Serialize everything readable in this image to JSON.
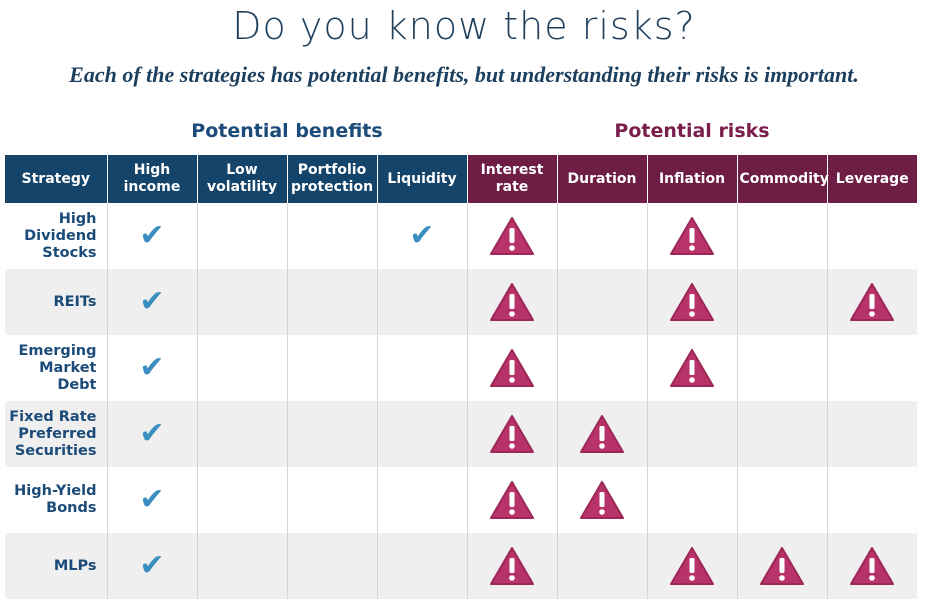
{
  "title": "Do you know the risks?",
  "subtitle": "Each of the strategies has potential benefits, but understanding their risks is important.",
  "groups": {
    "benefits": "Potential benefits",
    "risks": "Potential risks"
  },
  "columns": {
    "strategy": "Strategy",
    "high_income": [
      "High",
      "income"
    ],
    "low_volatility": [
      "Low",
      "volatility"
    ],
    "portfolio_protection": [
      "Portfolio",
      "protection"
    ],
    "liquidity": "Liquidity",
    "interest_rate": [
      "Interest",
      "rate"
    ],
    "duration": "Duration",
    "inflation": "Inflation",
    "commodity": "Commodity",
    "leverage": "Leverage"
  },
  "icons": {
    "benefit": "check-icon",
    "risk": "warning-triangle-icon"
  },
  "colors": {
    "benefit_header": "#15446b",
    "risk_header": "#6e1d45",
    "check": "#3a8fc0",
    "warning": "#b8336a"
  },
  "rows": [
    {
      "name": [
        "High",
        "Dividend",
        "Stocks"
      ]
    },
    {
      "name": [
        "REITs"
      ]
    },
    {
      "name": [
        "Emerging",
        "Market",
        "Debt"
      ]
    },
    {
      "name": [
        "Fixed Rate",
        "Preferred",
        "Securities"
      ]
    },
    {
      "name": [
        "High-Yield",
        "Bonds"
      ]
    },
    {
      "name": [
        "MLPs"
      ]
    }
  ]
}
